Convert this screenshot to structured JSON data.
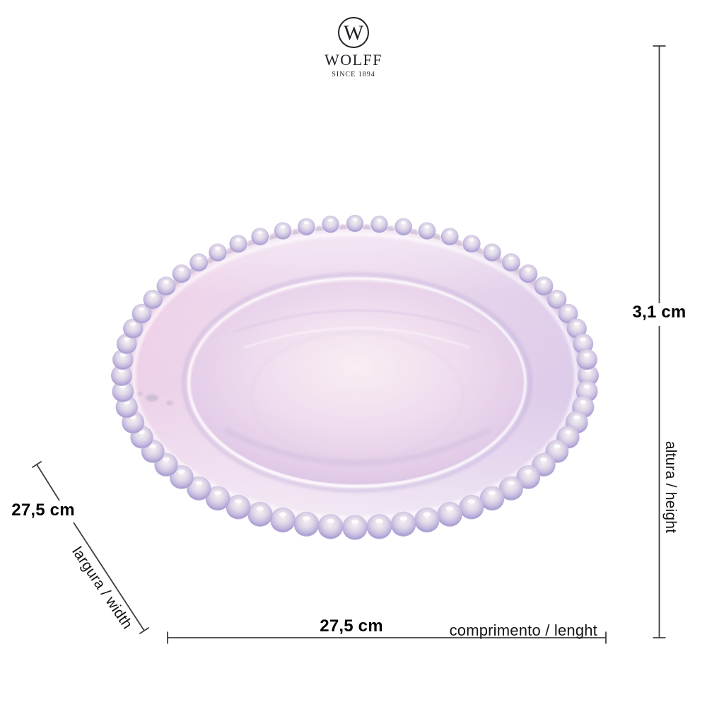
{
  "brand": {
    "monogram": "W",
    "name": "WOLFF",
    "tagline": "SINCE 1894"
  },
  "dimensions": {
    "height": {
      "value": "3,1 cm",
      "label": "altura / height"
    },
    "length": {
      "value": "27,5 cm",
      "label": "comprimento / lenght"
    },
    "width": {
      "value": "27,5 cm",
      "label": "largura / width"
    }
  },
  "plate": {
    "bead_count": 60,
    "palette": {
      "rim_inner": "#eedcee",
      "rim_mid": "#ebd4ea",
      "rim_outer": "#e8d0e9",
      "rim_edge": "#f1e8f3",
      "irid_pink": "#f2cde5",
      "irid_mid": "#ecdff0",
      "irid_lavender": "#d3c6ea",
      "well_center": "#f8eef3",
      "well_mid": "#efdcee",
      "well_low": "#e3cce8",
      "well_edge": "#cfbedd",
      "bead_core": "#f5f0f3",
      "bead_mid": "#e0d8e8",
      "bead_ring": "#c3b7de",
      "bead_deep": "#a99ed2",
      "bead_rim": "#d8d0e8",
      "crevice": "#b493bb",
      "line": "#3f3f3f",
      "text": "#000000"
    }
  }
}
